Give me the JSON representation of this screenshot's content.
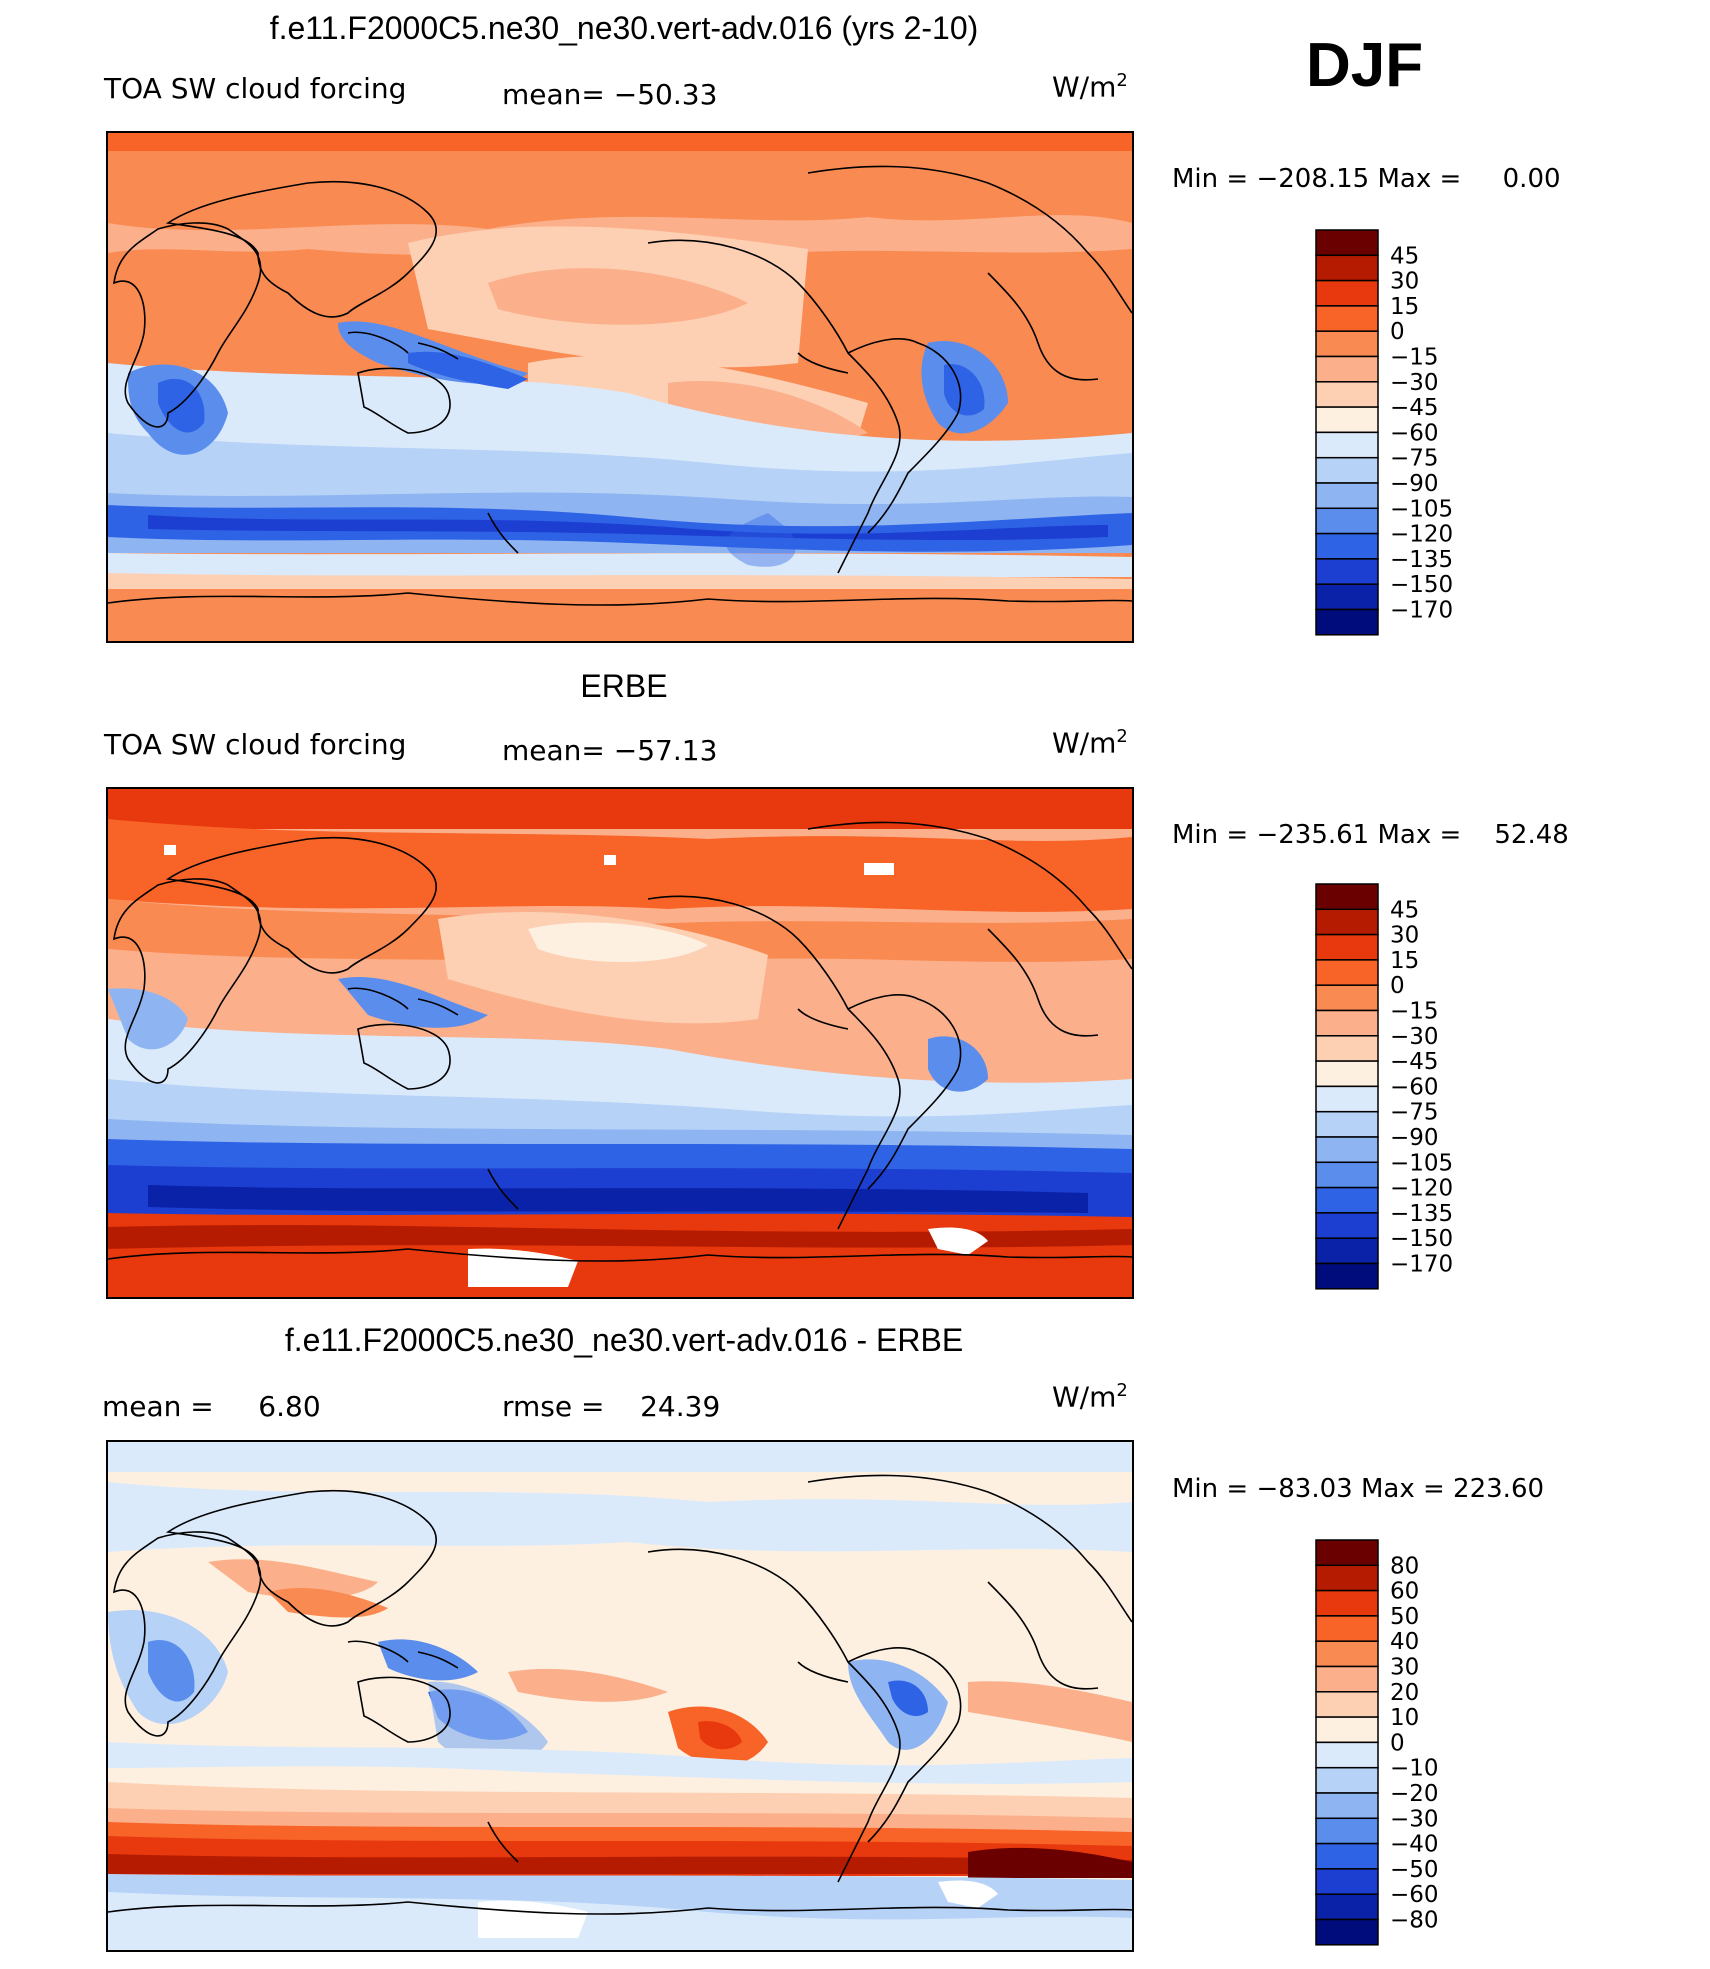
{
  "season": "DJF",
  "units_base": "W/m",
  "units_exp": "2",
  "panels": [
    {
      "id": "model",
      "title": "f.e11.F2000C5.ne30_ne30.vert-adv.016 (yrs 2-10)",
      "left_label": "TOA SW cloud forcing",
      "stat_label": "mean=",
      "stat_value": "−50.33",
      "min_label": "Min",
      "min_value": "−208.15",
      "max_label": "Max",
      "max_value": "0.00",
      "colorbar_levels": [
        "45",
        "30",
        "15",
        "0",
        "−15",
        "−30",
        "−45",
        "−60",
        "−75",
        "−90",
        "−105",
        "−120",
        "−135",
        "−150",
        "−170"
      ]
    },
    {
      "id": "obs",
      "title": "ERBE",
      "left_label": "TOA SW cloud forcing",
      "stat_label": "mean=",
      "stat_value": "−57.13",
      "min_label": "Min",
      "min_value": "−235.61",
      "max_label": "Max",
      "max_value": "52.48",
      "colorbar_levels": [
        "45",
        "30",
        "15",
        "0",
        "−15",
        "−30",
        "−45",
        "−60",
        "−75",
        "−90",
        "−105",
        "−120",
        "−135",
        "−150",
        "−170"
      ]
    },
    {
      "id": "diff",
      "title": "f.e11.F2000C5.ne30_ne30.vert-adv.016 - ERBE",
      "left_label": "mean =",
      "left_value": "6.80",
      "stat_label": "rmse =",
      "stat_value": "24.39",
      "min_label": "Min",
      "min_value": "−83.03",
      "max_label": "Max",
      "max_value": "223.60",
      "colorbar_levels": [
        "80",
        "60",
        "50",
        "40",
        "30",
        "20",
        "10",
        "0",
        "−10",
        "−20",
        "−30",
        "−40",
        "−50",
        "−60",
        "−80"
      ]
    }
  ],
  "colors": [
    "#6a0000",
    "#b51b00",
    "#e8380d",
    "#f86327",
    "#f98a52",
    "#fbb08b",
    "#fdd0b4",
    "#fdf0e0",
    "#dbeafb",
    "#b6d2f7",
    "#8eb5f2",
    "#5b8eec",
    "#2f63e6",
    "#1c3fd1",
    "#0a22a8",
    "#000c7c"
  ],
  "chart_data": [
    {
      "type": "heatmap",
      "title": "f.e11.F2000C5.ne30_ne30.vert-adv.016 (yrs 2-10)",
      "variable": "TOA SW cloud forcing",
      "units": "W/m2",
      "mean": -50.33,
      "min": -208.15,
      "max": 0.0,
      "contour_levels": [
        45,
        30,
        15,
        0,
        -15,
        -30,
        -45,
        -60,
        -75,
        -90,
        -105,
        -120,
        -135,
        -150,
        -170
      ],
      "projection": "cylindrical equidistant, centred on Pacific"
    },
    {
      "type": "heatmap",
      "title": "ERBE",
      "variable": "TOA SW cloud forcing",
      "units": "W/m2",
      "mean": -57.13,
      "min": -235.61,
      "max": 52.48,
      "contour_levels": [
        45,
        30,
        15,
        0,
        -15,
        -30,
        -45,
        -60,
        -75,
        -90,
        -105,
        -120,
        -135,
        -150,
        -170
      ]
    },
    {
      "type": "heatmap",
      "title": "f.e11.F2000C5.ne30_ne30.vert-adv.016 - ERBE",
      "units": "W/m2",
      "mean": 6.8,
      "rmse": 24.39,
      "min": -83.03,
      "max": 223.6,
      "contour_levels": [
        80,
        60,
        50,
        40,
        30,
        20,
        10,
        0,
        -10,
        -20,
        -30,
        -40,
        -50,
        -60,
        -80
      ]
    }
  ]
}
